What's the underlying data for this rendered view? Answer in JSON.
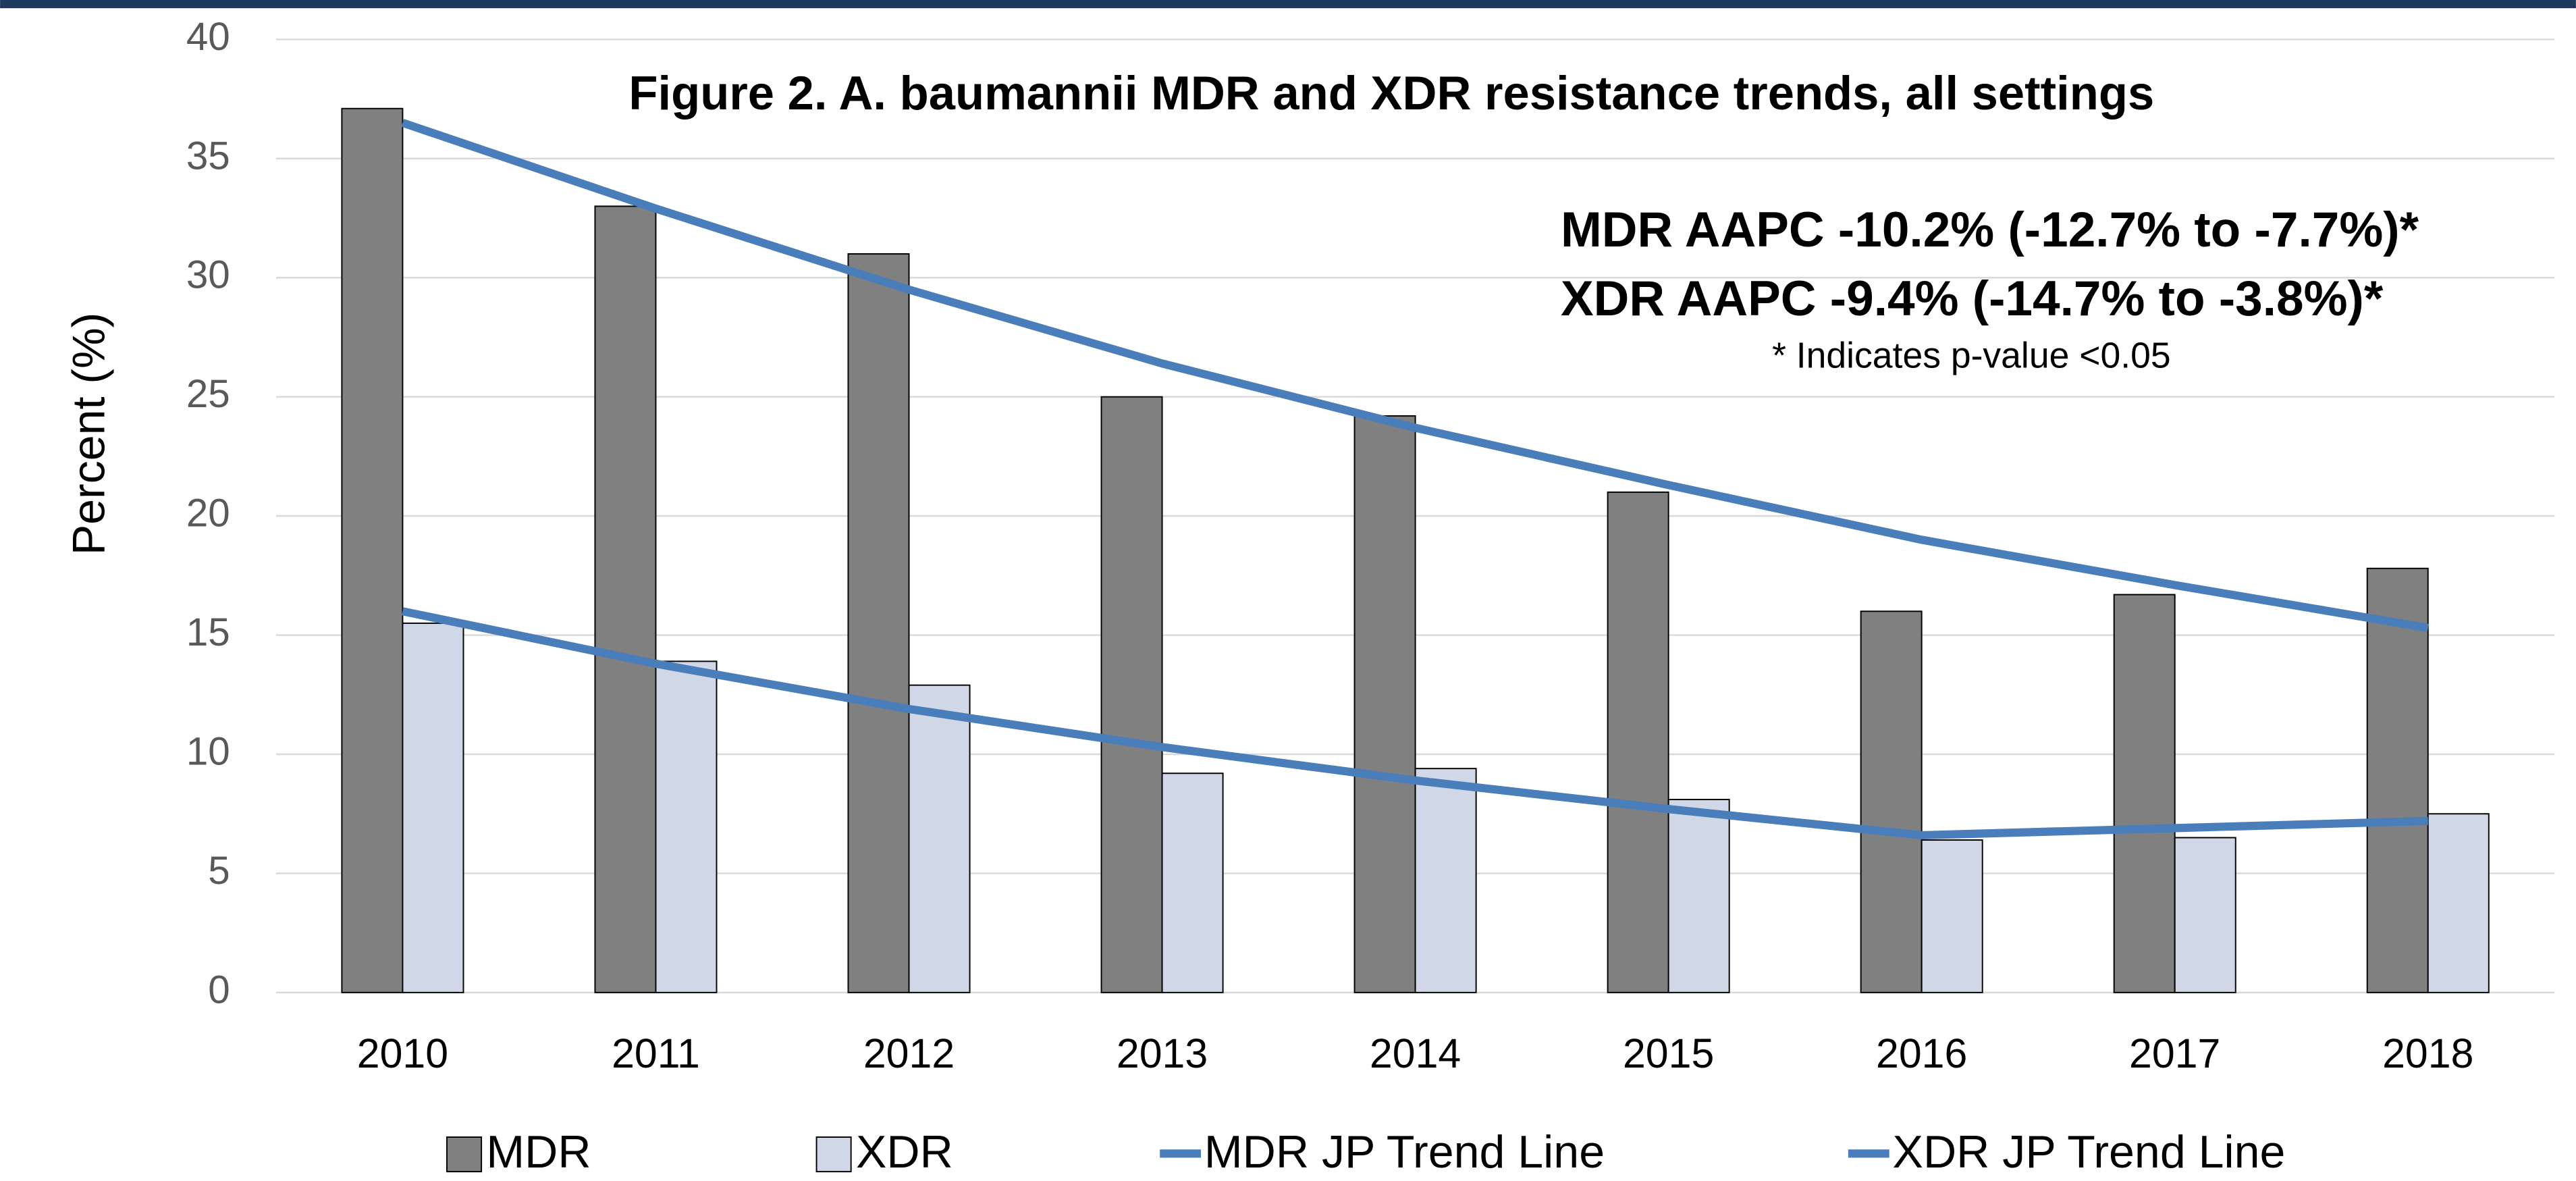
{
  "chart_data": {
    "type": "bar",
    "title": "Figure 2. A. baumannii MDR and XDR resistance trends, all settings",
    "annotations": [
      "MDR AAPC -10.2% (-12.7% to -7.7%)*",
      "XDR AAPC -9.4% (-14.7% to -3.8%)*",
      "* Indicates p-value <0.05"
    ],
    "y_label": "Percent (%)",
    "categories": [
      "2010",
      "2011",
      "2012",
      "2013",
      "2014",
      "2015",
      "2016",
      "2017",
      "2018"
    ],
    "series": [
      {
        "name": "MDR",
        "type": "bar",
        "color": "#808080",
        "values": [
          37.1,
          33.0,
          31.0,
          25.0,
          24.2,
          21.0,
          16.0,
          16.7,
          17.8
        ]
      },
      {
        "name": "XDR",
        "type": "bar",
        "color": "#d0d7e6",
        "values": [
          15.5,
          13.9,
          12.9,
          9.2,
          9.4,
          8.1,
          6.4,
          6.5,
          7.5
        ]
      },
      {
        "name": "MDR JP Trend Line",
        "type": "line",
        "color": "#4a7ebb",
        "values": [
          36.5,
          32.9,
          29.5,
          26.4,
          23.7,
          21.3,
          19.0,
          17.1,
          15.3
        ]
      },
      {
        "name": "XDR JP Trend Line",
        "type": "line",
        "color": "#4a7ebb",
        "values": [
          16.0,
          13.8,
          11.9,
          10.3,
          8.9,
          7.7,
          6.6,
          6.9,
          7.2
        ]
      }
    ],
    "ylim": [
      0,
      40
    ],
    "yticks": [
      0,
      5,
      10,
      15,
      20,
      25,
      30,
      35,
      40
    ],
    "grid": true,
    "legend": "bottom"
  }
}
